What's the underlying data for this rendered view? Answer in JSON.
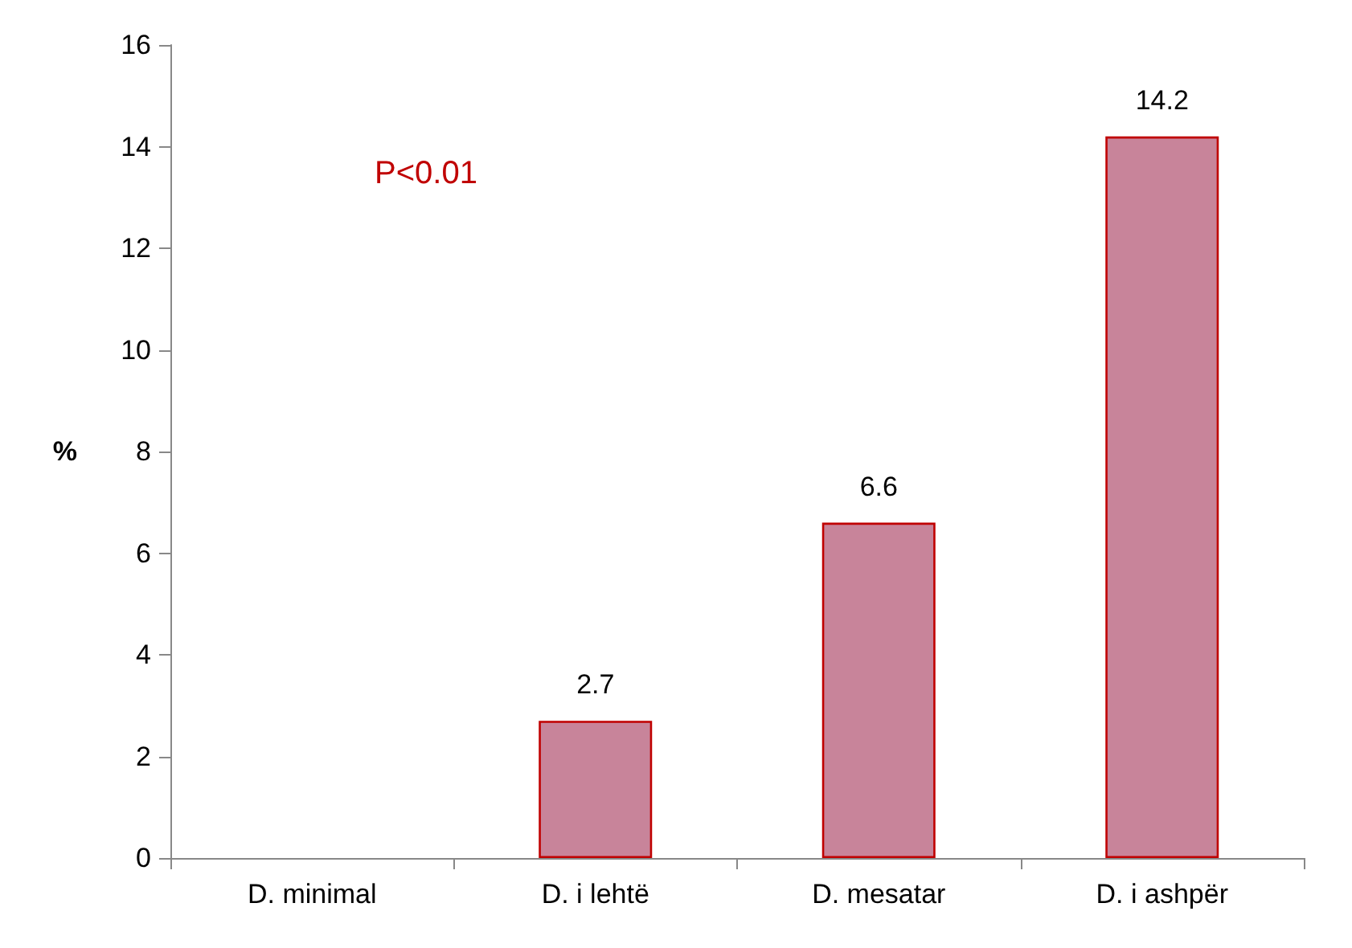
{
  "chart_data": {
    "type": "bar",
    "ylabel": "%",
    "categories": [
      "D. minimal",
      "D. i lehtë",
      "D. mesatar",
      "D. i ashpër"
    ],
    "values": [
      null,
      2.7,
      6.6,
      14.2
    ],
    "value_labels": [
      null,
      "2.7",
      "6.6",
      "14.2"
    ],
    "color": "#c8849a",
    "ylim": [
      0,
      16
    ],
    "yticks": [
      0,
      2,
      4,
      6,
      8,
      10,
      12,
      14,
      16
    ],
    "grid": false,
    "annotations": [
      "P<0.01"
    ]
  }
}
